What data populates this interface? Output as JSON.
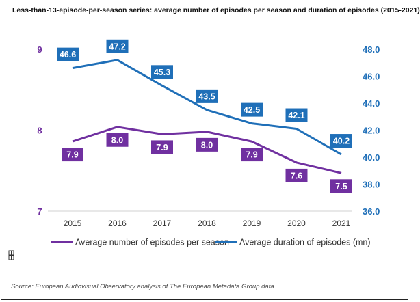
{
  "chart_data": {
    "type": "line",
    "title": "Less-than-13-episode-per-season series: average number of episodes per season and duration of episodes (2015-2021)",
    "categories": [
      "2015",
      "2016",
      "2017",
      "2018",
      "2019",
      "2020",
      "2021"
    ],
    "series": [
      {
        "name": "Average number of episodes per season",
        "axis": "left",
        "color": "#7030a0",
        "values": [
          7.9,
          8.0,
          7.9,
          8.0,
          7.9,
          7.6,
          7.5
        ],
        "plot_values": [
          7.86,
          8.04,
          7.95,
          7.98,
          7.86,
          7.6,
          7.47
        ],
        "labels": [
          "7.9",
          "8.0",
          "7.9",
          "8.0",
          "7.9",
          "7.6",
          "7.5"
        ]
      },
      {
        "name": "Average duration of episodes (mn)",
        "axis": "right",
        "color": "#1f6fb8",
        "values": [
          46.6,
          47.2,
          45.3,
          43.5,
          42.5,
          42.1,
          40.2
        ],
        "labels": [
          "46.6",
          "47.2",
          "45.3",
          "43.5",
          "42.5",
          "42.1",
          "40.2"
        ]
      }
    ],
    "left_axis": {
      "ylim": [
        7,
        9
      ],
      "ticks": [
        "7",
        "8",
        "9"
      ],
      "color": "#7030a0"
    },
    "right_axis": {
      "ylim": [
        36,
        48
      ],
      "ticks": [
        "36.0",
        "38.0",
        "40.0",
        "42.0",
        "44.0",
        "46.0",
        "48.0"
      ],
      "color": "#1f6fb8"
    },
    "legend": "bottom"
  },
  "source": "Source: European Audiovisual Observatory analysis of The European Metadata Group data"
}
